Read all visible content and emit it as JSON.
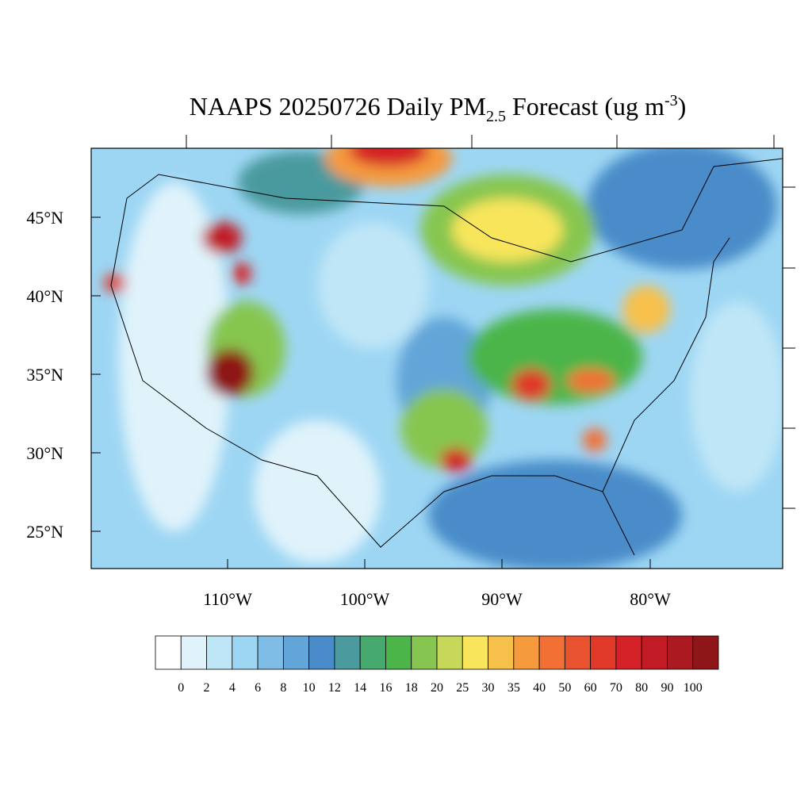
{
  "title": {
    "main": "NAAPS 20250726 Daily PM",
    "subscript": "2.5",
    "middle": " Forecast (ug m",
    "superscript": "-3",
    "end": ")"
  },
  "lat_labels": [
    "45°N",
    "40°N",
    "35°N",
    "30°N",
    "25°N"
  ],
  "lon_labels": [
    "110°W",
    "100°W",
    "90°W",
    "80°W"
  ],
  "colorbar": {
    "colors": [
      "#ffffff",
      "#e0f3fb",
      "#bfe6f7",
      "#9dd6f3",
      "#80bde6",
      "#62a5d8",
      "#4a8cc9",
      "#4a9a9e",
      "#46a96e",
      "#4cb54a",
      "#86c650",
      "#c6d759",
      "#f8e55c",
      "#f7c04b",
      "#f59a3d",
      "#f27034",
      "#e8522f",
      "#e0392a",
      "#d42027",
      "#c11b25",
      "#aa1a20",
      "#8e1618"
    ],
    "labels": [
      0,
      2,
      4,
      6,
      8,
      10,
      12,
      14,
      16,
      18,
      20,
      25,
      30,
      35,
      40,
      50,
      60,
      70,
      80,
      90,
      100
    ]
  }
}
